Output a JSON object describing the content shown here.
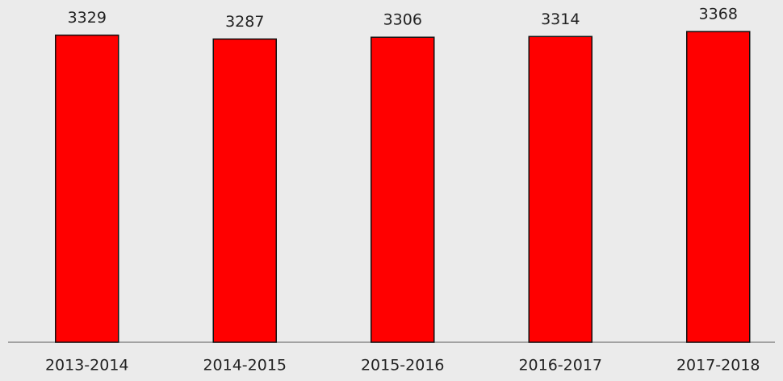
{
  "chart_data": {
    "type": "bar",
    "categories": [
      "2013-2014",
      "2014-2015",
      "2015-2016",
      "2016-2017",
      "2017-2018"
    ],
    "values": [
      3329,
      3287,
      3306,
      3314,
      3368
    ],
    "color": "#ff0000",
    "ylim": [
      0,
      3500
    ]
  }
}
